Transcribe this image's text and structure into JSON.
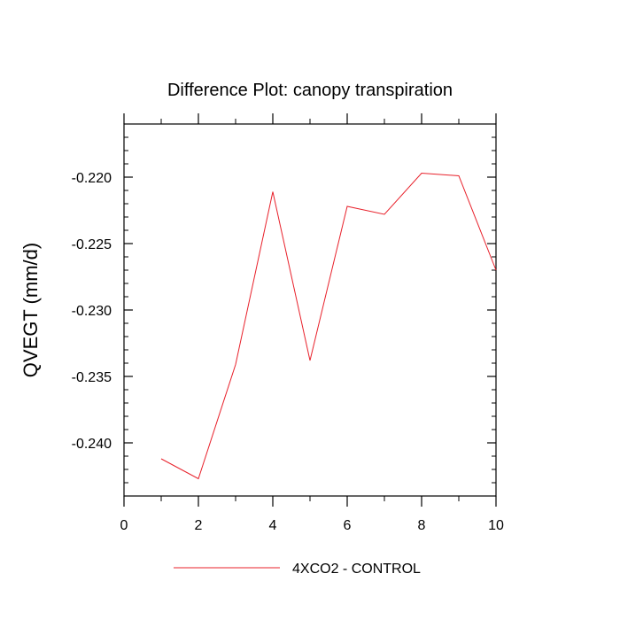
{
  "chart_data": {
    "type": "line",
    "title": "Difference Plot: canopy transpiration",
    "xlabel": "",
    "ylabel": "QVEGT  (mm/d)",
    "xlim": [
      0,
      10
    ],
    "ylim": [
      -0.244,
      -0.216
    ],
    "x_ticks": [
      0,
      2,
      4,
      6,
      8,
      10
    ],
    "x_tick_labels": [
      "0",
      "2",
      "4",
      "6",
      "8",
      "10"
    ],
    "y_ticks": [
      -0.22,
      -0.225,
      -0.23,
      -0.235,
      -0.24
    ],
    "y_tick_labels": [
      "-0.220",
      "-0.225",
      "-0.230",
      "-0.235",
      "-0.240"
    ],
    "grid": false,
    "legend_position": "bottom",
    "series": [
      {
        "name": "4XCO2 - CONTROL",
        "color": "#e8202a",
        "x": [
          1,
          2,
          3,
          4,
          5,
          6,
          7,
          8,
          9,
          10
        ],
        "y": [
          -0.2412,
          -0.2427,
          -0.2341,
          -0.2211,
          -0.2338,
          -0.2222,
          -0.2228,
          -0.2197,
          -0.2199,
          -0.227
        ]
      }
    ]
  }
}
